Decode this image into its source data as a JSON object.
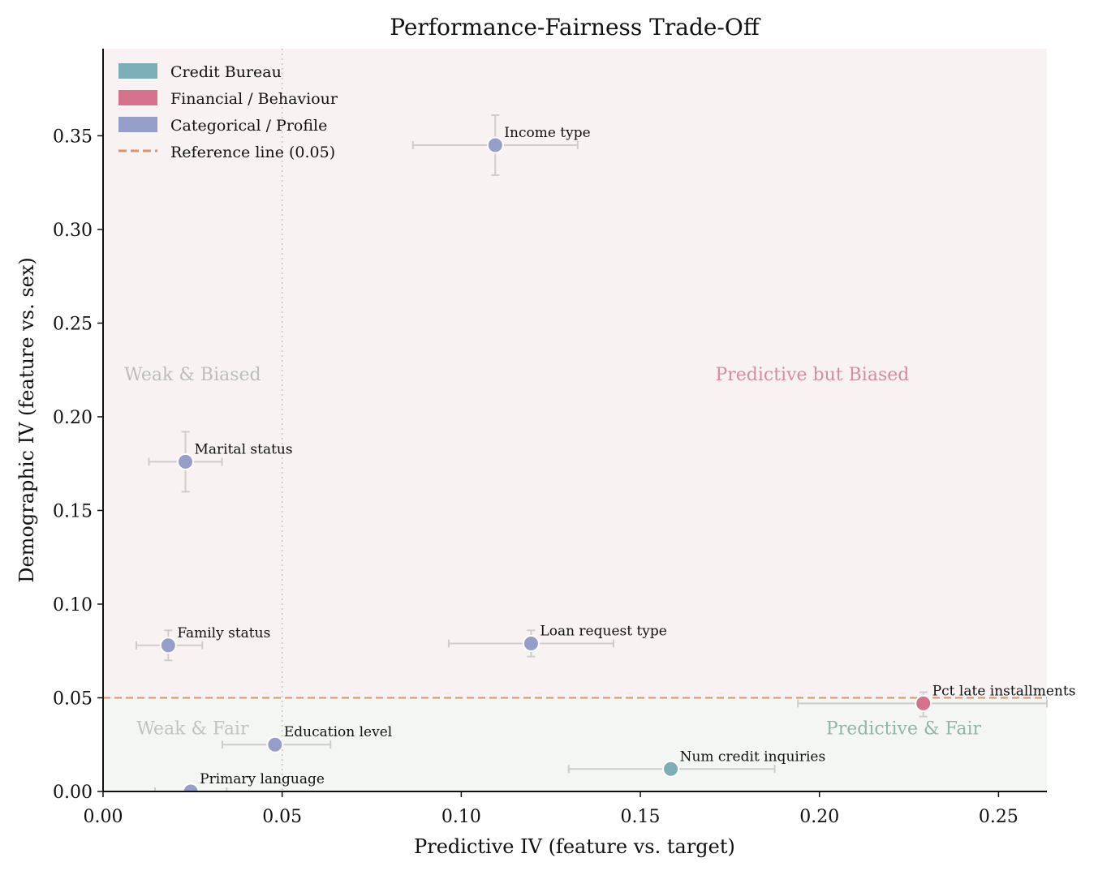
{
  "chart_data": {
    "type": "scatter",
    "title": "Performance-Fairness Trade-Off",
    "xlabel": "Predictive IV (feature vs. target)",
    "ylabel": "Demographic IV (feature vs. sex)",
    "xlim": [
      0,
      0.2635
    ],
    "ylim": [
      0,
      0.3965
    ],
    "xticks": [
      "0.00",
      "0.05",
      "0.10",
      "0.15",
      "0.20",
      "0.25"
    ],
    "yticks": [
      "0.00",
      "0.05",
      "0.10",
      "0.15",
      "0.20",
      "0.25",
      "0.30",
      "0.35"
    ],
    "grid": false,
    "legend_position": "upper-left",
    "vertical_line_x": 0.05,
    "reference_line": {
      "y": 0.05,
      "label": "Reference line (0.05)",
      "color": "#dd9366"
    },
    "groups": [
      {
        "name": "Credit Bureau",
        "color": "#7caeb8"
      },
      {
        "name": "Financial / Behaviour",
        "color": "#d6728b"
      },
      {
        "name": "Categorical / Profile",
        "color": "#959dc9"
      }
    ],
    "region_colors": {
      "biased": "#f9f2f3",
      "fair": "#f4f6f3"
    },
    "quadrant_labels": [
      {
        "text": "Weak & Biased",
        "color": "#bdbdbd"
      },
      {
        "text": "Predictive but Biased",
        "color": "#d38da0"
      },
      {
        "text": "Weak & Fair",
        "color": "#c2c2c2"
      },
      {
        "text": "Predictive & Fair",
        "color": "#93b5a6"
      }
    ],
    "points": [
      {
        "label": "Income type",
        "group": "Categorical / Profile",
        "x": 0.1095,
        "y": 0.345,
        "x_err": [
          0.0865,
          0.1325
        ],
        "y_err": [
          0.329,
          0.361
        ]
      },
      {
        "label": "Marital status",
        "group": "Categorical / Profile",
        "x": 0.023,
        "y": 0.176,
        "x_err": [
          0.0128,
          0.0332
        ],
        "y_err": [
          0.16,
          0.192
        ]
      },
      {
        "label": "Family status",
        "group": "Categorical / Profile",
        "x": 0.0182,
        "y": 0.078,
        "x_err": [
          0.0093,
          0.0277
        ],
        "y_err": [
          0.07,
          0.086
        ]
      },
      {
        "label": "Loan request type",
        "group": "Categorical / Profile",
        "x": 0.1195,
        "y": 0.079,
        "x_err": [
          0.0965,
          0.1425
        ],
        "y_err": [
          0.072,
          0.086
        ]
      },
      {
        "label": "Pct late installments",
        "group": "Financial / Behaviour",
        "x": 0.229,
        "y": 0.047,
        "x_err": [
          0.194,
          0.2635
        ],
        "y_err": [
          0.04,
          0.053
        ]
      },
      {
        "label": "Education level",
        "group": "Categorical / Profile",
        "x": 0.048,
        "y": 0.025,
        "x_err": [
          0.0333,
          0.0635
        ],
        "y_err": [
          0.022,
          0.028
        ]
      },
      {
        "label": "Num credit inquiries",
        "group": "Credit Bureau",
        "x": 0.1585,
        "y": 0.012,
        "x_err": [
          0.13,
          0.1875
        ],
        "y_err": [
          0.01,
          0.014
        ]
      },
      {
        "label": "Primary language",
        "group": "Categorical / Profile",
        "x": 0.0245,
        "y": 0.0,
        "x_err": [
          0.0145,
          0.0345
        ],
        "y_err": [
          0.0,
          0.003
        ]
      }
    ]
  }
}
